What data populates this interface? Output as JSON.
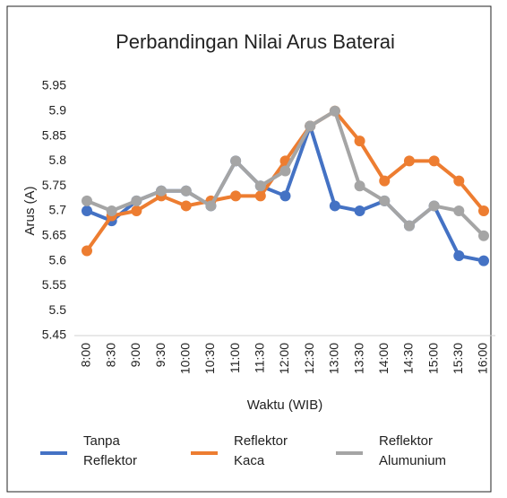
{
  "chart_data": {
    "type": "line",
    "title": "Perbandingan Nilai Arus Baterai",
    "x_label": "Waktu (WIB)",
    "y_label": "Arus (A)",
    "categories": [
      "8:00",
      "8:30",
      "9:00",
      "9:30",
      "10:00",
      "10:30",
      "11:00",
      "11:30",
      "12:00",
      "12:30",
      "13:00",
      "13:30",
      "14:00",
      "14:30",
      "15:00",
      "15:30",
      "16:00"
    ],
    "series": [
      {
        "name": "Tanpa Reflektor",
        "color": "#4472c4",
        "values": [
          5.7,
          5.68,
          5.72,
          5.74,
          5.74,
          5.71,
          5.8,
          5.75,
          5.73,
          5.87,
          5.71,
          5.7,
          5.72,
          5.67,
          5.71,
          5.61,
          5.6
        ]
      },
      {
        "name": "Reflektor Kaca",
        "color": "#ed7d31",
        "values": [
          5.62,
          5.69,
          5.7,
          5.73,
          5.71,
          5.72,
          5.73,
          5.73,
          5.8,
          5.87,
          5.9,
          5.84,
          5.76,
          5.8,
          5.8,
          5.76,
          5.7
        ]
      },
      {
        "name": "Reflektor Alumunium",
        "color": "#a5a5a5",
        "values": [
          5.72,
          5.7,
          5.72,
          5.74,
          5.74,
          5.71,
          5.8,
          5.75,
          5.78,
          5.87,
          5.9,
          5.75,
          5.72,
          5.67,
          5.71,
          5.7,
          5.65
        ]
      }
    ],
    "ylim": [
      5.45,
      5.95
    ],
    "yticks": [
      5.45,
      5.5,
      5.55,
      5.6,
      5.65,
      5.7,
      5.75,
      5.8,
      5.85,
      5.9,
      5.95
    ],
    "legend": "bottom"
  }
}
